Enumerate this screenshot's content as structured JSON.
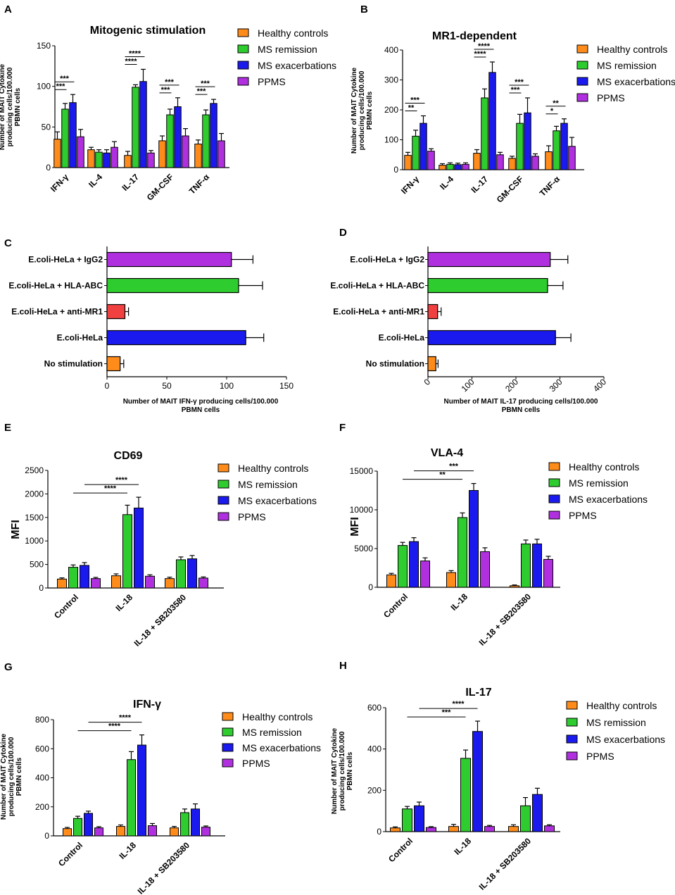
{
  "colors": {
    "Healthy controls": "#ff8c1a",
    "MS remission": "#2ecc2e",
    "MS exacerbations": "#1a1aee",
    "PPMS": "#b030e0",
    "E.coli-HeLa + IgG2": "#b030e0",
    "E.coli-HeLa + HLA-ABC": "#2ecc2e",
    "E.coli-HeLa + anti-MR1": "#f04040",
    "E.coli-HeLa": "#1a1aee",
    "No stimulation": "#ff8c1a"
  },
  "chart_data": [
    {
      "id": "A",
      "panel_label": "A",
      "type": "bar",
      "title": "Mitogenic stimulation",
      "ylabel": [
        "Number of MAIT Cytokine",
        "producing cells/100.000",
        "PBMN cells"
      ],
      "ylim": [
        0,
        150
      ],
      "yticks": [
        0,
        50,
        100,
        150
      ],
      "categories": [
        "IFN-γ",
        "IL-4",
        "IL-17",
        "GM-CSF",
        "TNF-α"
      ],
      "legend": [
        "Healthy controls",
        "MS remission",
        "MS exacerbations",
        "PPMS"
      ],
      "series": [
        {
          "name": "Healthy controls",
          "values": [
            35,
            22,
            15,
            33,
            29
          ],
          "errors": [
            9,
            3,
            5,
            6,
            5
          ]
        },
        {
          "name": "MS remission",
          "values": [
            72,
            19,
            99,
            65,
            65
          ],
          "errors": [
            7,
            3,
            3,
            7,
            6
          ]
        },
        {
          "name": "MS exacerbations",
          "values": [
            80,
            18,
            106,
            75,
            79
          ],
          "errors": [
            10,
            4,
            15,
            11,
            5
          ]
        },
        {
          "name": "PPMS",
          "values": [
            38,
            25,
            18,
            39,
            33
          ],
          "errors": [
            9,
            7,
            3,
            9,
            9
          ]
        }
      ],
      "significance": [
        {
          "category": 0,
          "from": 0,
          "to": 1,
          "label": "***"
        },
        {
          "category": 0,
          "from": 0,
          "to": 2,
          "label": "***"
        },
        {
          "category": 2,
          "from": 0,
          "to": 1,
          "label": "****"
        },
        {
          "category": 2,
          "from": 0,
          "to": 2,
          "label": "****"
        },
        {
          "category": 3,
          "from": 0,
          "to": 1,
          "label": "***"
        },
        {
          "category": 3,
          "from": 0,
          "to": 2,
          "label": "***"
        },
        {
          "category": 4,
          "from": 0,
          "to": 1,
          "label": "***"
        },
        {
          "category": 4,
          "from": 0,
          "to": 2,
          "label": "***"
        }
      ]
    },
    {
      "id": "B",
      "panel_label": "B",
      "type": "bar",
      "title": "MR1-dependent",
      "ylabel": [
        "Number of MAIT Cytokine",
        "producing cells/100.000",
        "PBMN cells"
      ],
      "ylim": [
        0,
        400
      ],
      "yticks": [
        0,
        100,
        200,
        300,
        400
      ],
      "categories": [
        "IFN-γ",
        "IL-4",
        "IL-17",
        "GM-CSF",
        "TNF-α"
      ],
      "legend": [
        "Healthy controls",
        "MS remission",
        "MS exacerbations",
        "PPMS"
      ],
      "series": [
        {
          "name": "Healthy controls",
          "values": [
            48,
            15,
            55,
            38,
            60
          ],
          "errors": [
            10,
            5,
            12,
            7,
            20
          ]
        },
        {
          "name": "MS remission",
          "values": [
            112,
            18,
            240,
            155,
            130
          ],
          "errors": [
            20,
            5,
            30,
            30,
            15
          ]
        },
        {
          "name": "MS exacerbations",
          "values": [
            155,
            17,
            325,
            190,
            155
          ],
          "errors": [
            25,
            5,
            35,
            50,
            15
          ]
        },
        {
          "name": "PPMS",
          "values": [
            62,
            18,
            50,
            45,
            78
          ],
          "errors": [
            8,
            5,
            8,
            8,
            30
          ]
        }
      ],
      "significance": [
        {
          "category": 0,
          "from": 0,
          "to": 1,
          "label": "**"
        },
        {
          "category": 0,
          "from": 0,
          "to": 2,
          "label": "***"
        },
        {
          "category": 2,
          "from": 0,
          "to": 1,
          "label": "****"
        },
        {
          "category": 2,
          "from": 0,
          "to": 2,
          "label": "****"
        },
        {
          "category": 3,
          "from": 0,
          "to": 1,
          "label": "***"
        },
        {
          "category": 3,
          "from": 0,
          "to": 2,
          "label": "***"
        },
        {
          "category": 4,
          "from": 0,
          "to": 1,
          "label": "*"
        },
        {
          "category": 4,
          "from": 0,
          "to": 2,
          "label": "**"
        }
      ]
    },
    {
      "id": "C",
      "panel_label": "C",
      "type": "hbar",
      "xlabel": [
        "Number of MAIT IFN-γ producing cells/100.000",
        "PBMN cells"
      ],
      "xlim": [
        0,
        150
      ],
      "xticks": [
        0,
        50,
        100,
        150
      ],
      "categories": [
        "E.coli-HeLa + IgG2",
        "E.coli-HeLa + HLA-ABC",
        "E.coli-HeLa + anti-MR1",
        "E.coli-HeLa",
        "No stimulation"
      ],
      "values": [
        104,
        110,
        15,
        116,
        11
      ],
      "errors": [
        18,
        20,
        3,
        15,
        3
      ]
    },
    {
      "id": "D",
      "panel_label": "D",
      "type": "hbar",
      "xlabel": [
        "Number of MAIT IL-17 producing cells/100.000",
        "PBMN cells"
      ],
      "xlim": [
        0,
        400
      ],
      "xticks": [
        0,
        100,
        200,
        300,
        400
      ],
      "categories": [
        "E.coli-HeLa + IgG2",
        "E.coli-HeLa + HLA-ABC",
        "E.coli-HeLa + anti-MR1",
        "E.coli-HeLa",
        "No stimulation"
      ],
      "values": [
        278,
        272,
        22,
        290,
        18
      ],
      "errors": [
        40,
        35,
        8,
        35,
        5
      ]
    },
    {
      "id": "E",
      "panel_label": "E",
      "type": "bar",
      "title": "CD69",
      "ylabel": [
        "MFI"
      ],
      "ylabel_big": true,
      "ylim": [
        0,
        2500
      ],
      "yticks": [
        0,
        500,
        1000,
        1500,
        2000,
        2500
      ],
      "categories": [
        "Control",
        "IL-18",
        "IL-18 + SB203580"
      ],
      "rotate_cats": true,
      "legend": [
        "Healthy controls",
        "MS remission",
        "MS exacerbations",
        "PPMS"
      ],
      "series": [
        {
          "name": "Healthy controls",
          "values": [
            190,
            260,
            200
          ],
          "errors": [
            25,
            40,
            30
          ]
        },
        {
          "name": "MS remission",
          "values": [
            440,
            1560,
            600
          ],
          "errors": [
            50,
            200,
            60
          ]
        },
        {
          "name": "MS exacerbations",
          "values": [
            480,
            1700,
            620
          ],
          "errors": [
            60,
            230,
            70
          ]
        },
        {
          "name": "PPMS",
          "values": [
            200,
            250,
            210
          ],
          "errors": [
            25,
            30,
            25
          ]
        }
      ],
      "significance": [
        {
          "category_from": 0,
          "series_from": 1,
          "category_to": 1,
          "series_to": 1,
          "label": "****",
          "level": 1
        },
        {
          "category_from": 0,
          "series_from": 2,
          "category_to": 1,
          "series_to": 2,
          "label": "****",
          "level": 2
        }
      ]
    },
    {
      "id": "F",
      "panel_label": "F",
      "type": "bar",
      "title": "VLA-4",
      "ylabel": [
        "MFI"
      ],
      "ylabel_big": true,
      "ylim": [
        0,
        15000
      ],
      "yticks": [
        0,
        5000,
        10000,
        15000
      ],
      "categories": [
        "Control",
        "IL-18",
        "IL-18 + SB203580"
      ],
      "rotate_cats": true,
      "legend": [
        "Healthy controls",
        "MS remission",
        "MS exacerbations",
        "PPMS"
      ],
      "series": [
        {
          "name": "Healthy controls",
          "values": [
            1600,
            1900,
            200
          ],
          "errors": [
            200,
            250,
            100
          ]
        },
        {
          "name": "MS remission",
          "values": [
            5400,
            9000,
            5600
          ],
          "errors": [
            400,
            600,
            500
          ]
        },
        {
          "name": "MS exacerbations",
          "values": [
            5900,
            12500,
            5600
          ],
          "errors": [
            500,
            900,
            600
          ]
        },
        {
          "name": "PPMS",
          "values": [
            3400,
            4600,
            3600
          ],
          "errors": [
            400,
            500,
            400
          ]
        }
      ],
      "significance": [
        {
          "category_from": 0,
          "series_from": 1,
          "category_to": 1,
          "series_to": 1,
          "label": "**",
          "level": 1
        },
        {
          "category_from": 0,
          "series_from": 2,
          "category_to": 1,
          "series_to": 2,
          "label": "***",
          "level": 2
        }
      ]
    },
    {
      "id": "G",
      "panel_label": "G",
      "type": "bar",
      "title": "IFN-γ",
      "ylabel": [
        "Number of MAIT Cytokine",
        "producing cells/100.000",
        "PBMN cells"
      ],
      "ylim": [
        0,
        800
      ],
      "yticks": [
        0,
        200,
        400,
        600,
        800
      ],
      "categories": [
        "Control",
        "IL-18",
        "IL-18 + SB203580"
      ],
      "rotate_cats": true,
      "legend": [
        "Healthy controls",
        "MS remission",
        "MS exacerbations",
        "PPMS"
      ],
      "series": [
        {
          "name": "Healthy controls",
          "values": [
            50,
            65,
            55
          ],
          "errors": [
            8,
            10,
            10
          ]
        },
        {
          "name": "MS remission",
          "values": [
            120,
            525,
            160
          ],
          "errors": [
            15,
            55,
            25
          ]
        },
        {
          "name": "MS exacerbations",
          "values": [
            155,
            625,
            185
          ],
          "errors": [
            15,
            70,
            35
          ]
        },
        {
          "name": "PPMS",
          "values": [
            55,
            70,
            60
          ],
          "errors": [
            8,
            15,
            8
          ]
        }
      ],
      "significance": [
        {
          "category_from": 0,
          "series_from": 1,
          "category_to": 1,
          "series_to": 1,
          "label": "****",
          "level": 1
        },
        {
          "category_from": 0,
          "series_from": 2,
          "category_to": 1,
          "series_to": 2,
          "label": "****",
          "level": 2
        }
      ]
    },
    {
      "id": "H",
      "panel_label": "H",
      "type": "bar",
      "title": "IL-17",
      "ylabel": [
        "Number of MAIT Cytokine",
        "producing cells/100.000",
        "PBMN cells"
      ],
      "ylim": [
        0,
        600
      ],
      "yticks": [
        0,
        200,
        400,
        600
      ],
      "categories": [
        "Control",
        "IL-18",
        "IL-18 + SB203580"
      ],
      "rotate_cats": true,
      "legend": [
        "Healthy controls",
        "MS remission",
        "MS exacerbations",
        "PPMS"
      ],
      "series": [
        {
          "name": "Healthy controls",
          "values": [
            18,
            25,
            25
          ],
          "errors": [
            5,
            10,
            8
          ]
        },
        {
          "name": "MS remission",
          "values": [
            110,
            355,
            125
          ],
          "errors": [
            12,
            40,
            40
          ]
        },
        {
          "name": "MS exacerbations",
          "values": [
            125,
            485,
            180
          ],
          "errors": [
            18,
            50,
            30
          ]
        },
        {
          "name": "PPMS",
          "values": [
            20,
            25,
            28
          ],
          "errors": [
            4,
            5,
            5
          ]
        }
      ],
      "significance": [
        {
          "category_from": 0,
          "series_from": 1,
          "category_to": 1,
          "series_to": 1,
          "label": "***",
          "level": 1
        },
        {
          "category_from": 0,
          "series_from": 2,
          "category_to": 1,
          "series_to": 2,
          "label": "****",
          "level": 2
        }
      ]
    }
  ]
}
